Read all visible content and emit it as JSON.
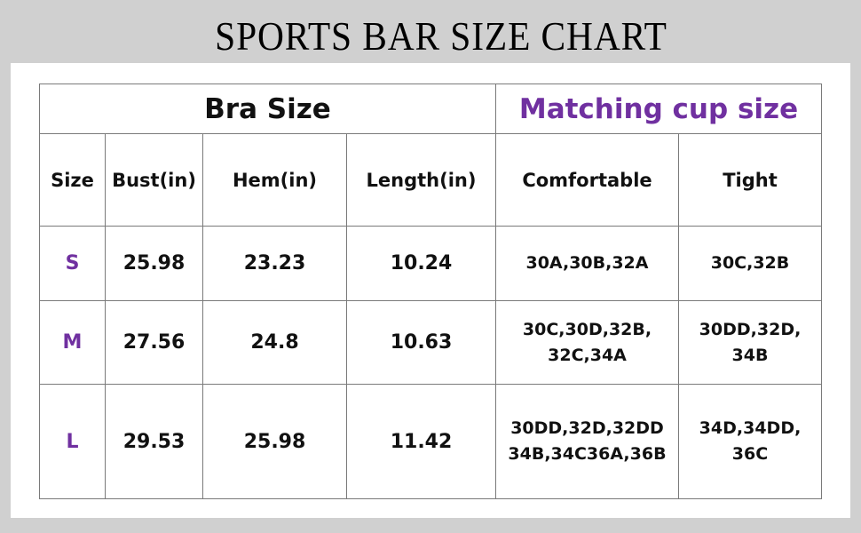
{
  "title": "SPORTS BAR SIZE CHART",
  "colors": {
    "accent": "#7030a0",
    "background": "#d0d0d0"
  },
  "table": {
    "group_headers": [
      "Bra Size",
      "Matching cup size"
    ],
    "columns": [
      "Size",
      "Bust(in)",
      "Hem(in)",
      "Length(in)",
      "Comfortable",
      "Tight"
    ],
    "rows": [
      {
        "size": "S",
        "bust": "25.98",
        "hem": "23.23",
        "length": "10.24",
        "comfortable": [
          "30A,30B,32A"
        ],
        "tight": [
          "30C,32B"
        ]
      },
      {
        "size": "M",
        "bust": "27.56",
        "hem": "24.8",
        "length": "10.63",
        "comfortable": [
          "30C,30D,32B,",
          "32C,34A"
        ],
        "tight": [
          "30DD,32D,",
          "34B"
        ]
      },
      {
        "size": "L",
        "bust": "29.53",
        "hem": "25.98",
        "length": "11.42",
        "comfortable": [
          "30DD,32D,32DD",
          "34B,34C36A,36B"
        ],
        "tight": [
          "34D,34DD,",
          "36C"
        ]
      }
    ]
  }
}
